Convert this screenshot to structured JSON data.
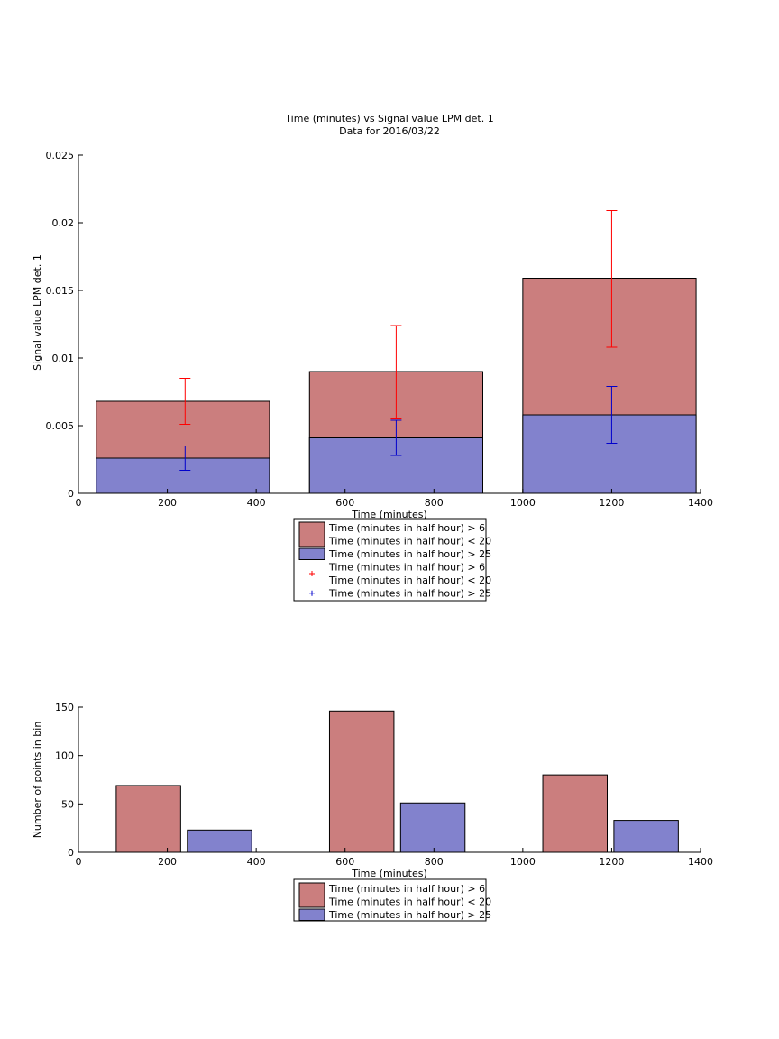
{
  "chart_data": [
    {
      "type": "bar",
      "title": "Time (minutes) vs Signal value LPM det. 1",
      "subtitle": "Data for 2016/03/22",
      "xlabel": "Time (minutes)",
      "ylabel": "Signal value LPM det. 1",
      "xlim": [
        0,
        1400
      ],
      "ylim": [
        0,
        0.025
      ],
      "xticks": [
        "0",
        "200",
        "400",
        "600",
        "800",
        "1000",
        "1200",
        "1400"
      ],
      "yticks": [
        "0",
        "0.005",
        "0.01",
        "0.015",
        "0.02",
        "0.025"
      ],
      "grid": false,
      "legend_position": "bottom",
      "bars": [
        {
          "x_start": 40,
          "x_end": 430,
          "value": 0.0068,
          "series": 0
        },
        {
          "x_start": 40,
          "x_end": 430,
          "value": 0.0026,
          "series": 1
        },
        {
          "x_start": 520,
          "x_end": 910,
          "value": 0.009,
          "series": 0
        },
        {
          "x_start": 520,
          "x_end": 910,
          "value": 0.0041,
          "series": 1
        },
        {
          "x_start": 1000,
          "x_end": 1390,
          "value": 0.0159,
          "series": 0
        },
        {
          "x_start": 1000,
          "x_end": 1390,
          "value": 0.0058,
          "series": 1
        }
      ],
      "errorbars": [
        {
          "x": 240,
          "low": 0.0051,
          "high": 0.0085,
          "series": 0
        },
        {
          "x": 240,
          "low": 0.0017,
          "high": 0.0035,
          "series": 1
        },
        {
          "x": 715,
          "low": 0.0055,
          "high": 0.0124,
          "series": 0
        },
        {
          "x": 715,
          "low": 0.0028,
          "high": 0.0054,
          "series": 1
        },
        {
          "x": 1200,
          "low": 0.0108,
          "high": 0.0209,
          "series": 0
        },
        {
          "x": 1200,
          "low": 0.0037,
          "high": 0.0079,
          "series": 1
        }
      ],
      "legend": [
        {
          "kind": "patch",
          "series": 0,
          "lines": [
            "Time (minutes in half hour) > 6",
            "Time (minutes in half hour) < 20"
          ]
        },
        {
          "kind": "patch",
          "series": 1,
          "lines": [
            "Time (minutes in half hour) > 25"
          ]
        },
        {
          "kind": "marker",
          "series": 0,
          "lines": [
            "Time (minutes in half hour) > 6",
            "Time (minutes in half hour) < 20"
          ]
        },
        {
          "kind": "marker",
          "series": 1,
          "lines": [
            "Time (minutes in half hour) > 25"
          ]
        }
      ]
    },
    {
      "type": "bar",
      "title": "",
      "xlabel": "Time (minutes)",
      "ylabel": "Number of points in bin",
      "xlim": [
        0,
        1400
      ],
      "ylim": [
        0,
        150
      ],
      "xticks": [
        "0",
        "200",
        "400",
        "600",
        "800",
        "1000",
        "1200",
        "1400"
      ],
      "yticks": [
        "0",
        "50",
        "100",
        "150"
      ],
      "grid": false,
      "legend_position": "bottom",
      "bars": [
        {
          "x_start": 85,
          "x_end": 230,
          "value": 69,
          "series": 0
        },
        {
          "x_start": 245,
          "x_end": 390,
          "value": 23,
          "series": 1
        },
        {
          "x_start": 565,
          "x_end": 710,
          "value": 146,
          "series": 0
        },
        {
          "x_start": 725,
          "x_end": 870,
          "value": 51,
          "series": 1
        },
        {
          "x_start": 1045,
          "x_end": 1190,
          "value": 80,
          "series": 0
        },
        {
          "x_start": 1205,
          "x_end": 1350,
          "value": 33,
          "series": 1
        }
      ],
      "errorbars": [],
      "legend": [
        {
          "kind": "patch",
          "series": 0,
          "lines": [
            "Time (minutes in half hour) > 6",
            "Time (minutes in half hour) < 20"
          ]
        },
        {
          "kind": "patch",
          "series": 1,
          "lines": [
            "Time (minutes in half hour) > 25"
          ]
        }
      ]
    }
  ],
  "colors": {
    "series_fill": [
      "#cb7e7e",
      "#8282cd"
    ],
    "series_marker": [
      "#ff0000",
      "#0000cc"
    ]
  }
}
